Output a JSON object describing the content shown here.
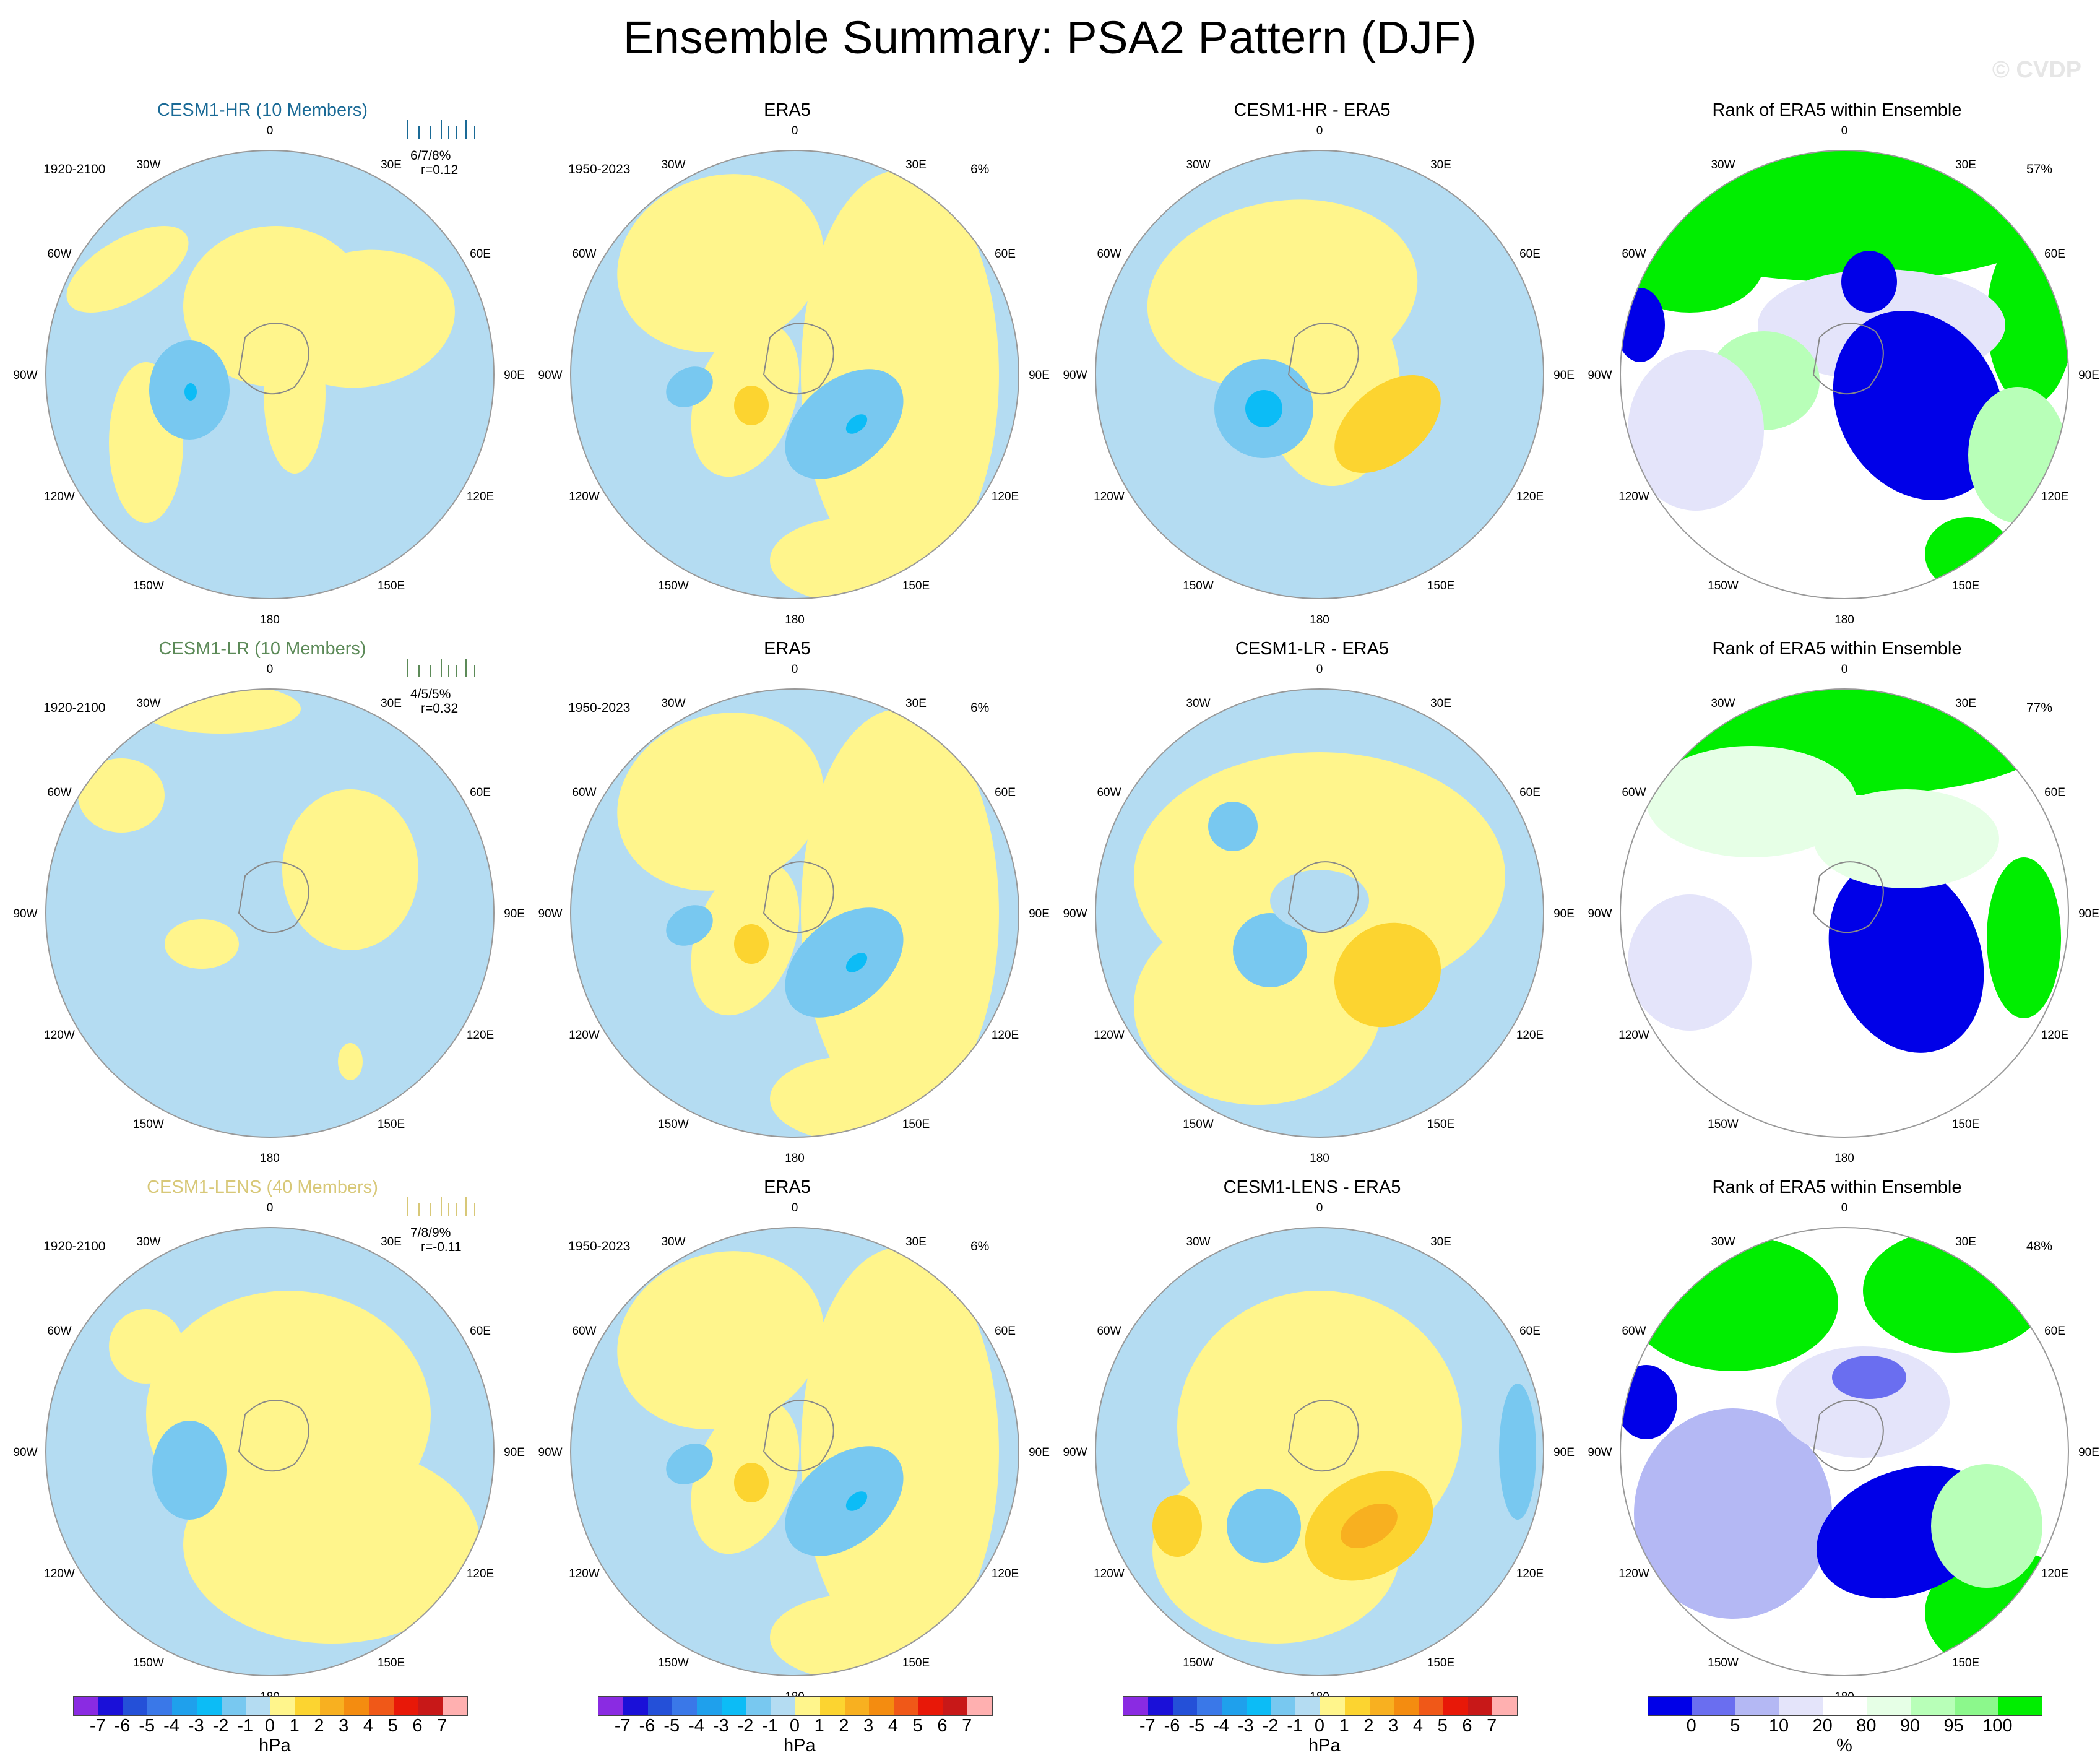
{
  "title": "Ensemble Summary: PSA2 Pattern (DJF)",
  "watermark": "© CVDP",
  "colors": {
    "blue7": "#8a2be2",
    "blue6": "#1a10d8",
    "blue5": "#2450d8",
    "blue4": "#3a78e8",
    "blue3": "#1fa0ec",
    "blue2": "#0cbcf6",
    "blue1": "#78c8f0",
    "blue0": "#b4dcf2",
    "yel0": "#fff58c",
    "yel1": "#fcd430",
    "org2": "#f8b020",
    "org3": "#f48c10",
    "red4": "#f05818",
    "red5": "#e81808",
    "red6": "#c81818",
    "pink7": "#ffb0b0",
    "rank_bluedark": "#0000e8",
    "rank_bluemid": "#6a6ef0",
    "rank_bluelight": "#b4b8f4",
    "rank_pale": "#e4e4fa",
    "rank_white": "#ffffff",
    "rank_greenpale": "#e6ffe6",
    "rank_greenlight": "#b8ffb8",
    "rank_greenmid": "#8cf88c",
    "rank_green": "#00ee00"
  },
  "rows": [
    {
      "model": {
        "title": "CESM1-HR (10 Members)",
        "title_color": "#1a6a96",
        "years": "1920-2100",
        "stat": "6/7/8%",
        "corr": "r=0.12"
      },
      "obs": {
        "title": "ERA5",
        "years": "1950-2023",
        "pct": "6%"
      },
      "diff": {
        "title": "CESM1-HR - ERA5"
      },
      "rank": {
        "title": "Rank of ERA5 within Ensemble",
        "pct": "57%"
      }
    },
    {
      "model": {
        "title": "CESM1-LR (10 Members)",
        "title_color": "#5c8a58",
        "years": "1920-2100",
        "stat": "4/5/5%",
        "corr": "r=0.32"
      },
      "obs": {
        "title": "ERA5",
        "years": "1950-2023",
        "pct": "6%"
      },
      "diff": {
        "title": "CESM1-LR - ERA5"
      },
      "rank": {
        "title": "Rank of ERA5 within Ensemble",
        "pct": "77%"
      }
    },
    {
      "model": {
        "title": "CESM1-LENS (40 Members)",
        "title_color": "#d8c878",
        "years": "1920-2100",
        "stat": "7/8/9%",
        "corr": "r=-0.11"
      },
      "obs": {
        "title": "ERA5",
        "years": "1950-2023",
        "pct": "6%"
      },
      "diff": {
        "title": "CESM1-LENS - ERA5"
      },
      "rank": {
        "title": "Rank of ERA5 within Ensemble",
        "pct": "48%"
      }
    }
  ],
  "lon_labels": [
    "0",
    "30E",
    "60E",
    "90E",
    "120E",
    "150E",
    "180",
    "150W",
    "120W",
    "90W",
    "60W",
    "30W"
  ],
  "legend_hpa": {
    "ticks": [
      "-7",
      "-6",
      "-5",
      "-4",
      "-3",
      "-2",
      "-1",
      "0",
      "1",
      "2",
      "3",
      "4",
      "5",
      "6",
      "7"
    ],
    "unit": "hPa"
  },
  "legend_pct": {
    "ticks": [
      "0",
      "5",
      "10",
      "20",
      "80",
      "90",
      "95",
      "100"
    ],
    "unit": "%"
  }
}
